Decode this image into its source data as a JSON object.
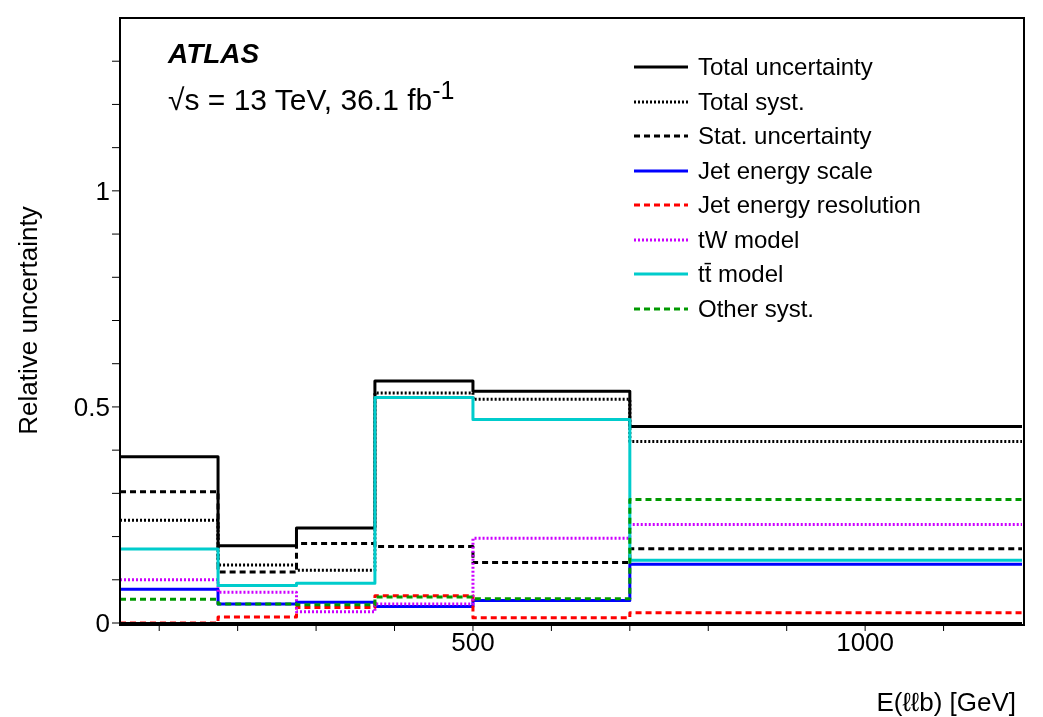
{
  "chart_data": {
    "type": "step",
    "x": [
      50,
      175,
      275,
      375,
      500,
      700
    ],
    "xlim": [
      50,
      1200
    ],
    "xticks": [
      {
        "value": 100,
        "label": null
      },
      {
        "value": 200,
        "label": null
      },
      {
        "value": 300,
        "label": null
      },
      {
        "value": 400,
        "label": null
      },
      500,
      {
        "value": 600,
        "label": null
      },
      {
        "value": 700,
        "label": null
      },
      {
        "value": 800,
        "label": null
      },
      {
        "value": 900,
        "label": null
      },
      1000,
      {
        "value": 1100,
        "label": null
      }
    ],
    "ylim": [
      0,
      1.4
    ],
    "yticks": [
      0,
      {
        "value": 0.1,
        "label": null
      },
      {
        "value": 0.2,
        "label": null
      },
      {
        "value": 0.3,
        "label": null
      },
      {
        "value": 0.4,
        "label": null
      },
      0.5,
      {
        "value": 0.6,
        "label": null
      },
      {
        "value": 0.7,
        "label": null
      },
      {
        "value": 0.8,
        "label": null
      },
      {
        "value": 0.9,
        "label": null
      },
      1,
      {
        "value": 1.1,
        "label": null
      },
      {
        "value": 1.2,
        "label": null
      },
      {
        "value": 1.3,
        "label": null
      }
    ],
    "xlabel": "E(ℓℓb) [GeV]",
    "ylabel": "Relative uncertainty",
    "annotations": [
      "ATLAS",
      "√s = 13 TeV, 36.1 fb$^{-1}$"
    ],
    "legend": "top right",
    "grid": false,
    "series": [
      {
        "name": "Total uncertainty",
        "color": "#000000",
        "line_style": "solid",
        "values": [
          0.385,
          0.179,
          0.22,
          0.56,
          0.536,
          0.455
        ]
      },
      {
        "name": "Total syst.",
        "color": "#000000",
        "line_style": "dotted",
        "values": [
          0.238,
          0.134,
          0.122,
          0.532,
          0.518,
          0.42
        ]
      },
      {
        "name": "Stat. uncertainty",
        "color": "#000000",
        "line_style": "dashed",
        "values": [
          0.304,
          0.118,
          0.184,
          0.177,
          0.14,
          0.172
        ]
      },
      {
        "name": "Jet energy scale",
        "color": "#0000ff",
        "line_style": "solid",
        "values": [
          0.078,
          0.044,
          0.048,
          0.038,
          0.052,
          0.136
        ]
      },
      {
        "name": "Jet energy resolution",
        "color": "#ff0000",
        "line_style": "dashed",
        "values": [
          0,
          0.014,
          0.036,
          0.063,
          0.012,
          0.024
        ]
      },
      {
        "name": "tW model",
        "color": "#cc00ff",
        "line_style": "dotted",
        "values": [
          0.1,
          0.071,
          0.026,
          0.044,
          0.196,
          0.228
        ]
      },
      {
        "name": "tt̄ model",
        "color": "#00cccc",
        "line_style": "solid",
        "values": [
          0.171,
          0.087,
          0.092,
          0.522,
          0.471,
          0.145
        ]
      },
      {
        "name": "Other syst.",
        "color": "#009900",
        "line_style": "dashed",
        "values": [
          0.055,
          0.044,
          0.042,
          0.06,
          0.056,
          0.286
        ]
      }
    ]
  }
}
